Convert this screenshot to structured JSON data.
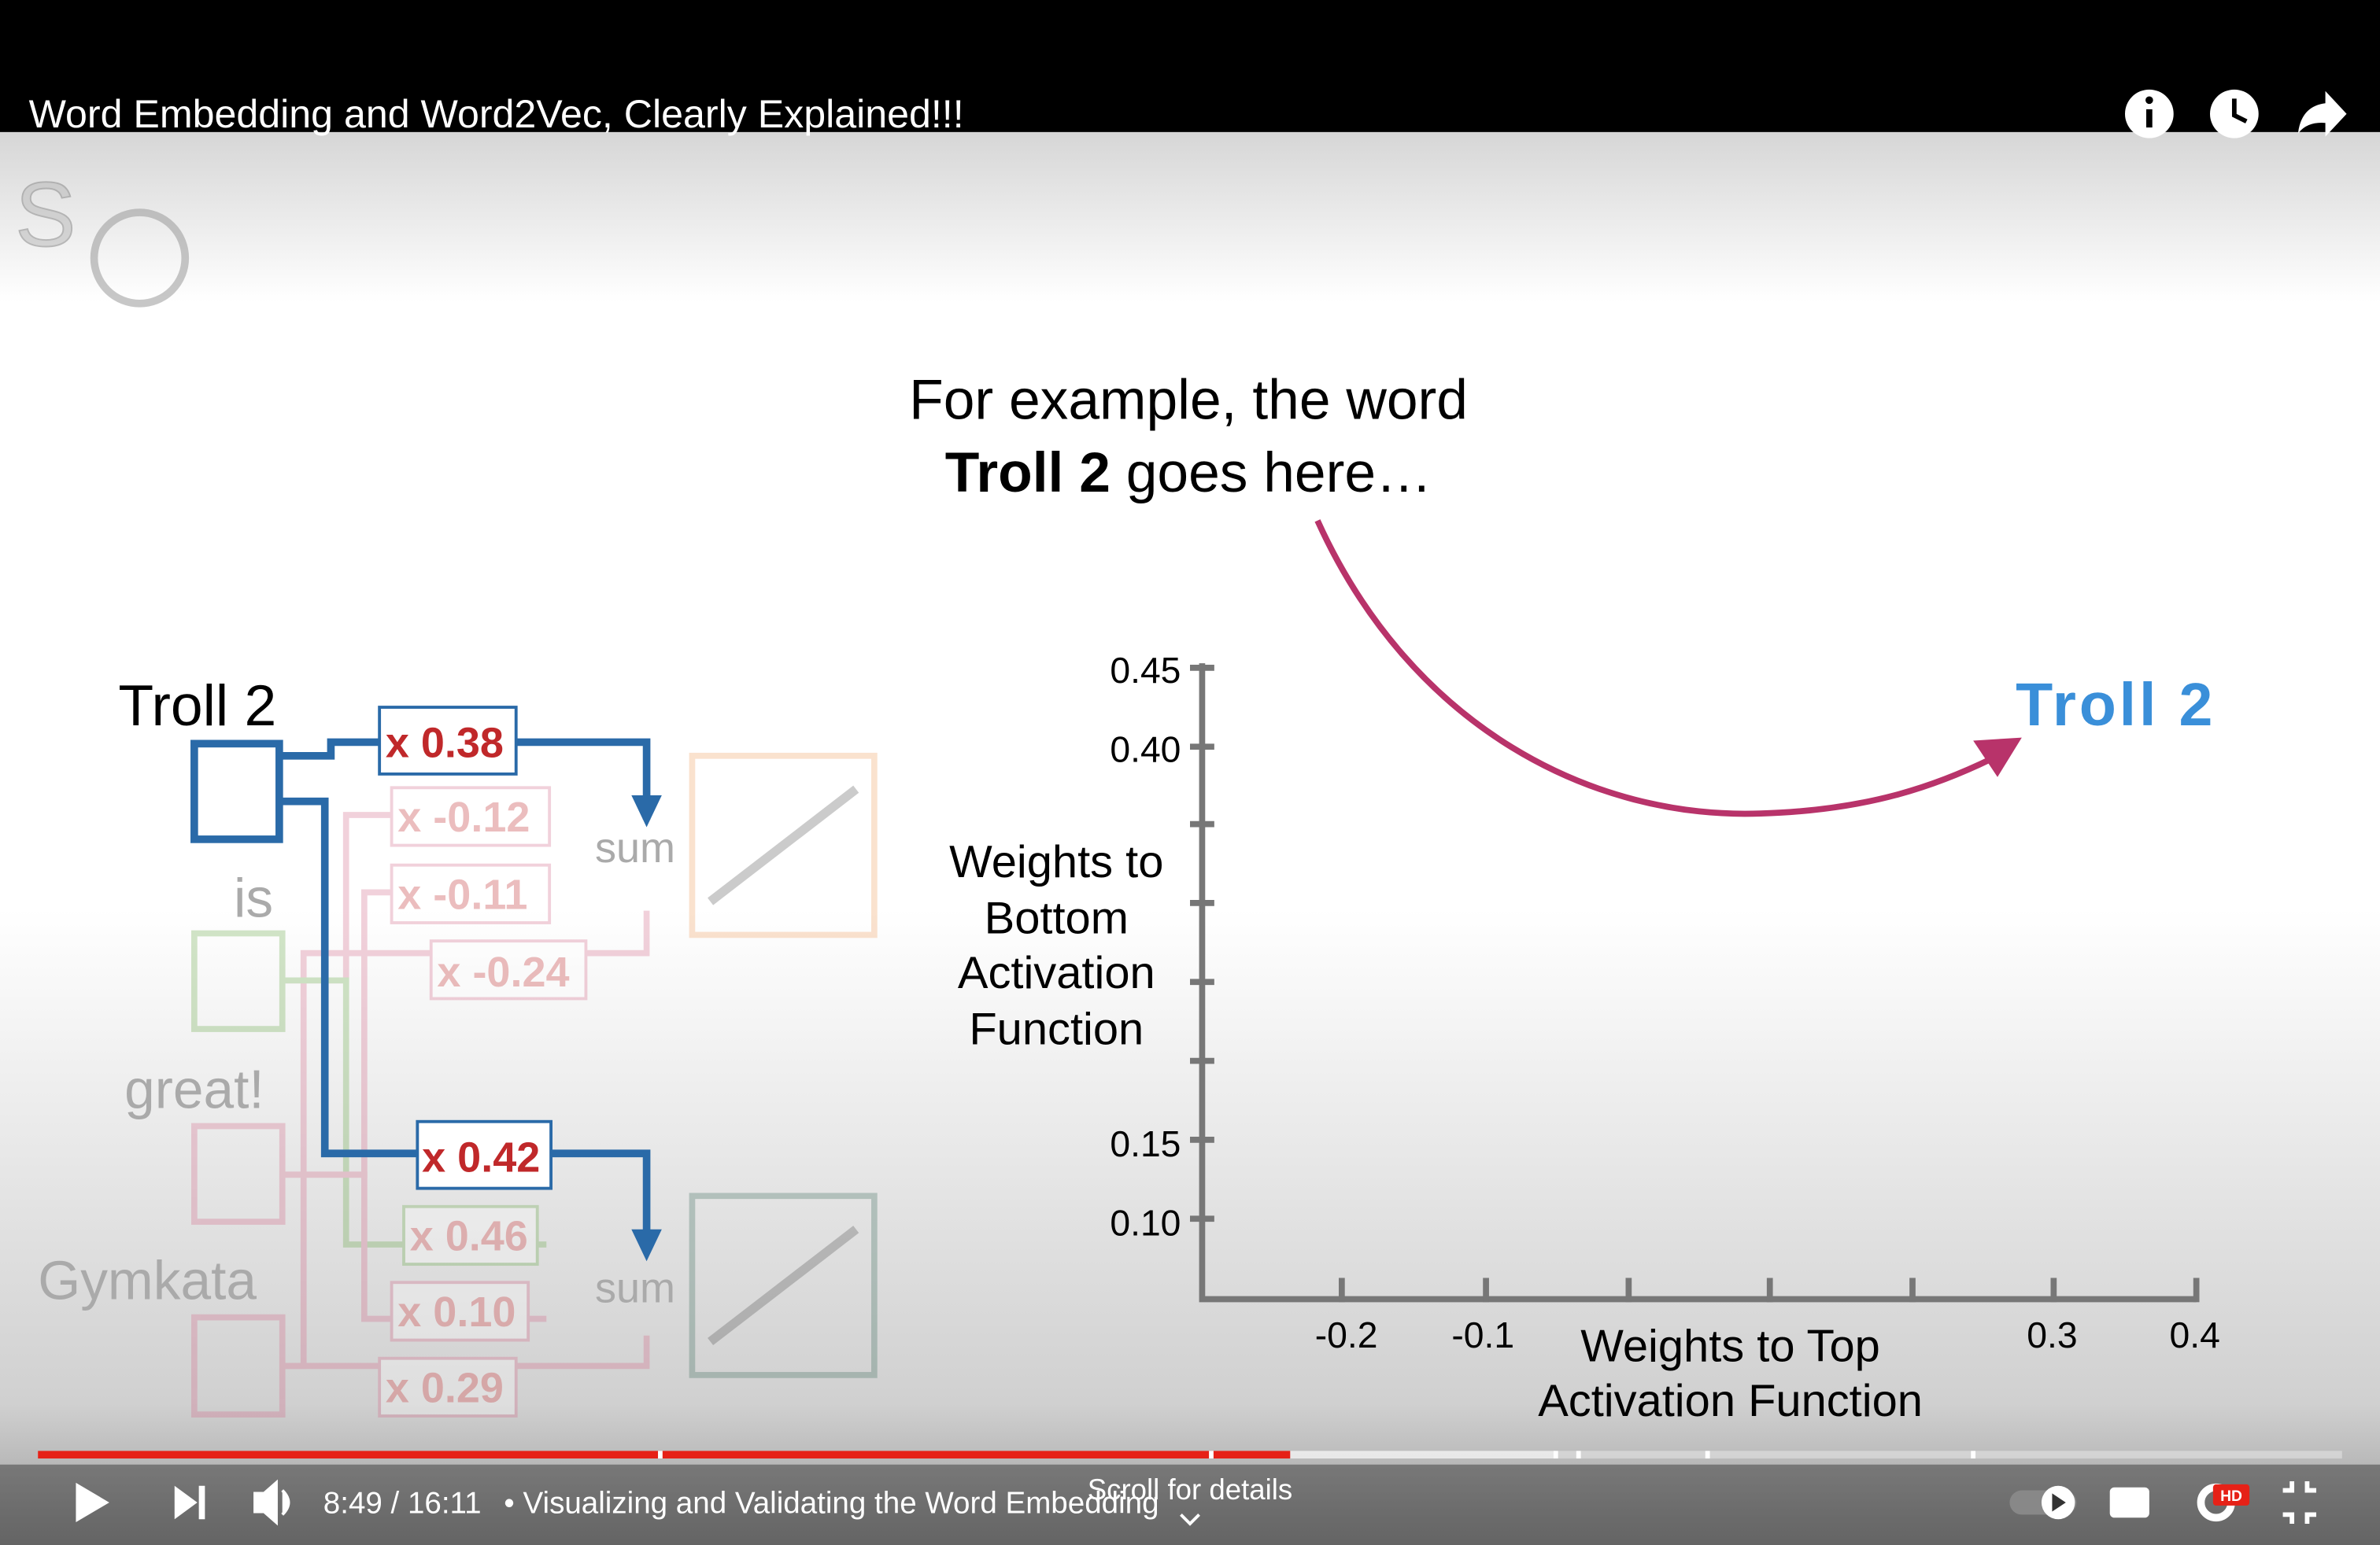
{
  "header": {
    "title": "Word Embedding and Word2Vec, Clearly Explained!!!"
  },
  "video": {
    "caption": {
      "line1": "For example, the word",
      "line2_bold": "Troll 2",
      "line2_rest": "goes here…"
    },
    "callout": "Troll 2",
    "network": {
      "inputs": [
        "Troll 2",
        "is",
        "great!",
        "Gymkata"
      ],
      "weights_top": [
        "x 0.38",
        "x -0.12",
        "x -0.11",
        "x -0.24"
      ],
      "weights_bottom": [
        "x 0.42",
        "x 0.46",
        "x 0.10",
        "x 0.29"
      ],
      "sum_labels": [
        "sum",
        "sum"
      ]
    },
    "plot": {
      "y_label": [
        "Weights to",
        "Bottom",
        "Activation",
        "Function"
      ],
      "x_label": [
        "Weights to Top",
        "Activation Function"
      ],
      "yticks": [
        "0.45",
        "0.40",
        "0.15",
        "0.10"
      ],
      "xticks": [
        "-0.2",
        "-0.1",
        "0.3",
        "0.4"
      ]
    }
  },
  "controls": {
    "time": "8:49 / 16:11",
    "chapter": "• Visualizing and Validating the Word Embedding",
    "hint": "Scroll for details",
    "hd": "HD"
  }
}
